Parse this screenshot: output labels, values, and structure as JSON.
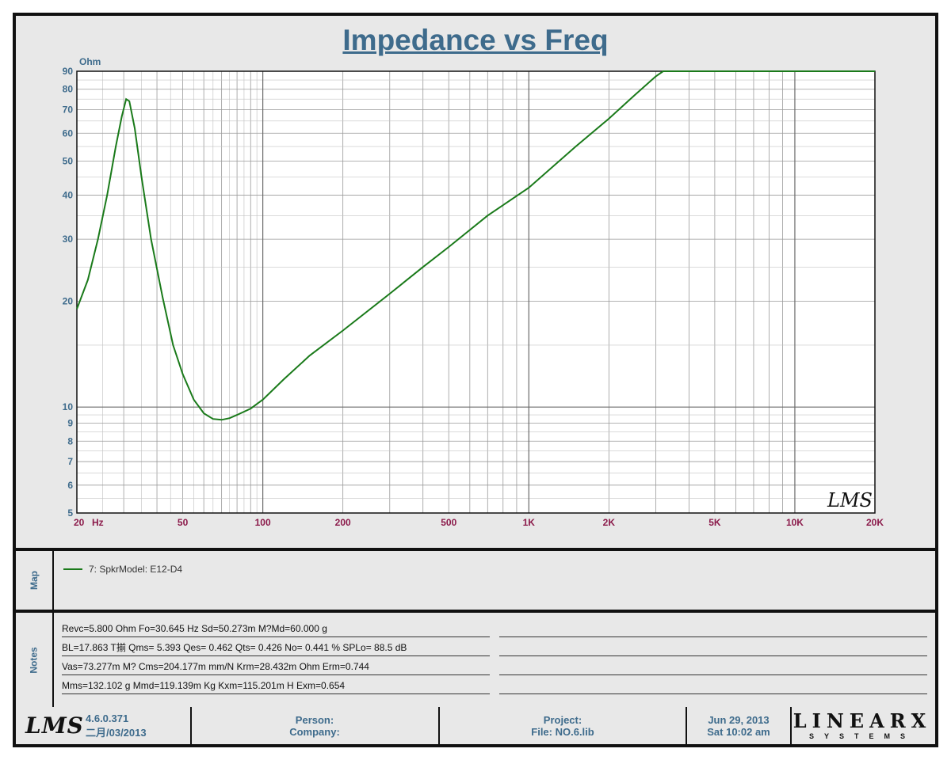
{
  "chart_data": {
    "type": "line",
    "title": "Impedance vs Freq",
    "ylabel": "Ohm",
    "x_unit": "Hz",
    "x_scale": "log",
    "y_scale": "log",
    "xlim": [
      20,
      20000
    ],
    "ylim": [
      5,
      90
    ],
    "grid": true,
    "x_ticks": [
      {
        "value": 20,
        "label": "20"
      },
      {
        "value": 50,
        "label": "50"
      },
      {
        "value": 100,
        "label": "100"
      },
      {
        "value": 200,
        "label": "200"
      },
      {
        "value": 500,
        "label": "500"
      },
      {
        "value": 1000,
        "label": "1K"
      },
      {
        "value": 2000,
        "label": "2K"
      },
      {
        "value": 5000,
        "label": "5K"
      },
      {
        "value": 10000,
        "label": "10K"
      },
      {
        "value": 20000,
        "label": "20K"
      }
    ],
    "y_ticks": [
      {
        "value": 5,
        "label": "5"
      },
      {
        "value": 6,
        "label": "6"
      },
      {
        "value": 7,
        "label": "7"
      },
      {
        "value": 8,
        "label": "8"
      },
      {
        "value": 9,
        "label": "9"
      },
      {
        "value": 10,
        "label": "10"
      },
      {
        "value": 20,
        "label": "20"
      },
      {
        "value": 30,
        "label": "30"
      },
      {
        "value": 40,
        "label": "40"
      },
      {
        "value": 50,
        "label": "50"
      },
      {
        "value": 60,
        "label": "60"
      },
      {
        "value": 70,
        "label": "70"
      },
      {
        "value": 80,
        "label": "80"
      },
      {
        "value": 90,
        "label": "90"
      }
    ],
    "series": [
      {
        "name": "7: SpkrModel: E12-D4",
        "color": "#1a7a1a",
        "x": [
          20,
          22,
          24,
          26,
          28,
          29.5,
          30.645,
          31.5,
          33,
          35,
          38,
          42,
          46,
          50,
          55,
          60,
          65,
          70,
          75,
          80,
          90,
          100,
          120,
          150,
          200,
          300,
          400,
          500,
          700,
          1000,
          1500,
          2000,
          2500,
          3000,
          3200,
          5000,
          10000,
          20000
        ],
        "y": [
          19,
          23,
          30,
          40,
          55,
          67,
          75,
          74,
          62,
          45,
          30,
          20.5,
          15,
          12.4,
          10.5,
          9.6,
          9.25,
          9.2,
          9.3,
          9.5,
          9.9,
          10.5,
          12,
          14,
          16.5,
          21,
          25,
          28.5,
          35,
          42,
          55,
          66,
          77,
          87,
          90,
          90,
          90,
          90
        ]
      }
    ]
  },
  "watermark": "LMS",
  "legend_panel": {
    "title": "Map",
    "items": [
      {
        "label": "7: SpkrModel: E12-D4",
        "color": "#1a7a1a"
      }
    ]
  },
  "notes_panel": {
    "title": "Notes",
    "lines": [
      "Revc=5.800 Ohm  Fo=30.645 Hz  Sd=50.273m M?Md=60.000 g",
      "BL=17.863 T揃  Qms= 5.393  Qes= 0.462  Qts= 0.426  No= 0.441 %  SPLo= 88.5 dB",
      "Vas=73.277m M? Cms=204.177m mm/N  Krm=28.432m Ohm  Erm=0.744",
      "Mms=132.102 g  Mmd=119.139m Kg  Kxm=115.201m H  Exm=0.654"
    ]
  },
  "footer": {
    "logo": "LMS",
    "version": "4.6.0.371",
    "version_date": "二月/03/2013",
    "person_label": "Person:",
    "company_label": "Company:",
    "project_label": "Project:",
    "file_label": "File: NO.6.lib",
    "date": "Jun 29, 2013",
    "time": "Sat 10:02 am",
    "brand_name": "LINEARX",
    "brand_sub": "SYSTEMS"
  },
  "colors": {
    "title": "#3e6b8c",
    "axis_label": "#3e6b8c",
    "x_tick_label": "#8b1a4a",
    "curve": "#1a7a1a",
    "grid": "#9a9a9a",
    "background": "#e8e8e8"
  }
}
